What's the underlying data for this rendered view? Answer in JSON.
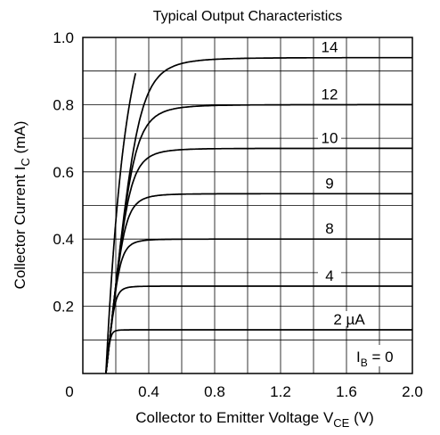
{
  "chart_data": {
    "type": "line",
    "title": "Typical Output Characteristics",
    "ylabel": {
      "main": "Collector Current  I",
      "sub": "C",
      "unit": "  (mA)"
    },
    "xlabel": {
      "main": "Collector to Emitter Voltage  V",
      "sub": "CE",
      "unit": "  (V)"
    },
    "xlim": [
      0,
      2.0
    ],
    "ylim": [
      0,
      1.0
    ],
    "x_ticks": [
      "0",
      "0.4",
      "0.8",
      "1.2",
      "1.6",
      "2.0"
    ],
    "y_ticks": [
      "0.2",
      "0.4",
      "0.6",
      "0.8",
      "1.0"
    ],
    "grid": true,
    "series": [
      {
        "name": "14",
        "saturation": 0.94
      },
      {
        "name": "12",
        "saturation": 0.8
      },
      {
        "name": "10",
        "saturation": 0.67
      },
      {
        "name": "9",
        "saturation": 0.535
      },
      {
        "name": "8",
        "saturation": 0.4
      },
      {
        "name": "4",
        "saturation": 0.26
      },
      {
        "name": "2 µA",
        "saturation": 0.13
      }
    ],
    "annotation": {
      "main": "I",
      "sub": "B",
      "rest": " = 0"
    }
  }
}
